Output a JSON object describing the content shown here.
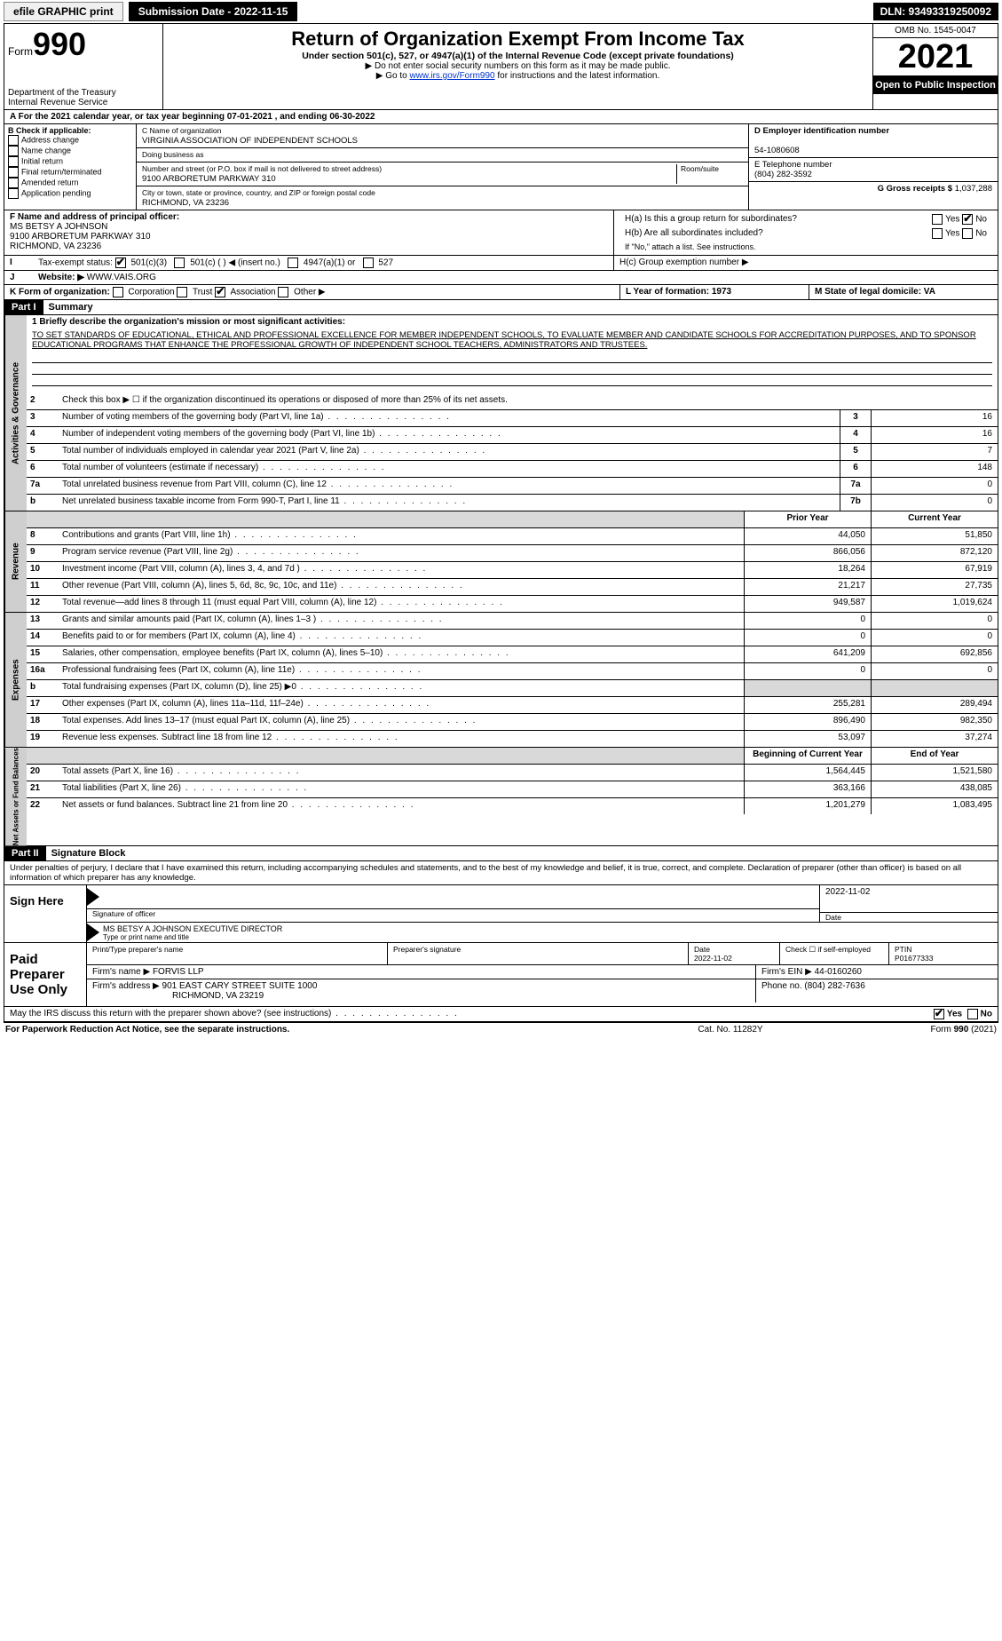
{
  "topbar": {
    "efile": "efile GRAPHIC print",
    "submission": "Submission Date - 2022-11-15",
    "dln": "DLN: 93493319250092"
  },
  "header": {
    "form_label": "Form",
    "form_no": "990",
    "title": "Return of Organization Exempt From Income Tax",
    "subtitle": "Under section 501(c), 527, or 4947(a)(1) of the Internal Revenue Code (except private foundations)",
    "note1": "▶ Do not enter social security numbers on this form as it may be made public.",
    "note2_pre": "▶ Go to ",
    "note2_link": "www.irs.gov/Form990",
    "note2_post": " for instructions and the latest information.",
    "dept": "Department of the Treasury",
    "irs": "Internal Revenue Service",
    "omb": "OMB No. 1545-0047",
    "year": "2021",
    "inspect": "Open to Public Inspection"
  },
  "rowA": "A For the 2021 calendar year, or tax year beginning 07-01-2021     , and ending 06-30-2022",
  "colB": {
    "label": "B Check if applicable:",
    "items": [
      "Address change",
      "Name change",
      "Initial return",
      "Final return/terminated",
      "Amended return",
      "Application pending"
    ]
  },
  "colC": {
    "name_label": "C Name of organization",
    "name": "VIRGINIA ASSOCIATION OF INDEPENDENT SCHOOLS",
    "dba_label": "Doing business as",
    "addr_label": "Number and street (or P.O. box if mail is not delivered to street address)",
    "room_label": "Room/suite",
    "addr": "9100 ARBORETUM PARKWAY 310",
    "city_label": "City or town, state or province, country, and ZIP or foreign postal code",
    "city": "RICHMOND, VA  23236"
  },
  "colD": {
    "ein_label": "D Employer identification number",
    "ein": "54-1080608",
    "tel_label": "E Telephone number",
    "tel": "(804) 282-3592",
    "gross_label": "G Gross receipts $",
    "gross": "1,037,288"
  },
  "rowF": {
    "label": "F Name and address of principal officer:",
    "name": "MS BETSY A JOHNSON",
    "addr": "9100 ARBORETUM PARKWAY 310",
    "city": "RICHMOND, VA  23236"
  },
  "rowH": {
    "ha": "H(a)  Is this a group return for subordinates?",
    "hb": "H(b)  Are all subordinates included?",
    "hb_note": "If \"No,\" attach a list. See instructions.",
    "hc": "H(c)  Group exemption number ▶",
    "yes": "Yes",
    "no": "No"
  },
  "rowI": {
    "label": "Tax-exempt status:",
    "opts": [
      "501(c)(3)",
      "501(c) (   ) ◀ (insert no.)",
      "4947(a)(1) or",
      "527"
    ]
  },
  "rowJ": {
    "label": "Website: ▶",
    "val": "WWW.VAIS.ORG"
  },
  "rowK": {
    "label": "K Form of organization:",
    "opts": [
      "Corporation",
      "Trust",
      "Association",
      "Other ▶"
    ],
    "L": "L Year of formation: 1973",
    "M": "M State of legal domicile: VA"
  },
  "part1": {
    "hdr": "Part I",
    "title": "Summary",
    "tab1": "Activities & Governance",
    "tab2": "Revenue",
    "tab3": "Expenses",
    "tab4": "Net Assets or Fund Balances",
    "l1": "1  Briefly describe the organization's mission or most significant activities:",
    "mission": "TO SET STANDARDS OF EDUCATIONAL, ETHICAL AND PROFESSIONAL EXCELLENCE FOR MEMBER INDEPENDENT SCHOOLS, TO EVALUATE MEMBER AND CANDIDATE SCHOOLS FOR ACCREDITATION PURPOSES, AND TO SPONSOR EDUCATIONAL PROGRAMS THAT ENHANCE THE PROFESSIONAL GROWTH OF INDEPENDENT SCHOOL TEACHERS, ADMINISTRATORS AND TRUSTEES.",
    "l2": "Check this box ▶ ☐  if the organization discontinued its operations or disposed of more than 25% of its net assets.",
    "lines_single": [
      {
        "n": "3",
        "t": "Number of voting members of the governing body (Part VI, line 1a)",
        "b": "3",
        "v": "16"
      },
      {
        "n": "4",
        "t": "Number of independent voting members of the governing body (Part VI, line 1b)",
        "b": "4",
        "v": "16"
      },
      {
        "n": "5",
        "t": "Total number of individuals employed in calendar year 2021 (Part V, line 2a)",
        "b": "5",
        "v": "7"
      },
      {
        "n": "6",
        "t": "Total number of volunteers (estimate if necessary)",
        "b": "6",
        "v": "148"
      },
      {
        "n": "7a",
        "t": "Total unrelated business revenue from Part VIII, column (C), line 12",
        "b": "7a",
        "v": "0"
      },
      {
        "n": "b",
        "t": "Net unrelated business taxable income from Form 990-T, Part I, line 11",
        "b": "7b",
        "v": "0"
      }
    ],
    "prior": "Prior Year",
    "current": "Current Year",
    "rev": [
      {
        "n": "8",
        "t": "Contributions and grants (Part VIII, line 1h)",
        "p": "44,050",
        "c": "51,850"
      },
      {
        "n": "9",
        "t": "Program service revenue (Part VIII, line 2g)",
        "p": "866,056",
        "c": "872,120"
      },
      {
        "n": "10",
        "t": "Investment income (Part VIII, column (A), lines 3, 4, and 7d )",
        "p": "18,264",
        "c": "67,919"
      },
      {
        "n": "11",
        "t": "Other revenue (Part VIII, column (A), lines 5, 6d, 8c, 9c, 10c, and 11e)",
        "p": "21,217",
        "c": "27,735"
      },
      {
        "n": "12",
        "t": "Total revenue—add lines 8 through 11 (must equal Part VIII, column (A), line 12)",
        "p": "949,587",
        "c": "1,019,624"
      }
    ],
    "exp": [
      {
        "n": "13",
        "t": "Grants and similar amounts paid (Part IX, column (A), lines 1–3 )",
        "p": "0",
        "c": "0"
      },
      {
        "n": "14",
        "t": "Benefits paid to or for members (Part IX, column (A), line 4)",
        "p": "0",
        "c": "0"
      },
      {
        "n": "15",
        "t": "Salaries, other compensation, employee benefits (Part IX, column (A), lines 5–10)",
        "p": "641,209",
        "c": "692,856"
      },
      {
        "n": "16a",
        "t": "Professional fundraising fees (Part IX, column (A), line 11e)",
        "p": "0",
        "c": "0"
      },
      {
        "n": "b",
        "t": "Total fundraising expenses (Part IX, column (D), line 25) ▶0",
        "p": "",
        "c": "",
        "shade": true
      },
      {
        "n": "17",
        "t": "Other expenses (Part IX, column (A), lines 11a–11d, 11f–24e)",
        "p": "255,281",
        "c": "289,494"
      },
      {
        "n": "18",
        "t": "Total expenses. Add lines 13–17 (must equal Part IX, column (A), line 25)",
        "p": "896,490",
        "c": "982,350"
      },
      {
        "n": "19",
        "t": "Revenue less expenses. Subtract line 18 from line 12",
        "p": "53,097",
        "c": "37,274"
      }
    ],
    "beg": "Beginning of Current Year",
    "end": "End of Year",
    "net": [
      {
        "n": "20",
        "t": "Total assets (Part X, line 16)",
        "p": "1,564,445",
        "c": "1,521,580"
      },
      {
        "n": "21",
        "t": "Total liabilities (Part X, line 26)",
        "p": "363,166",
        "c": "438,085"
      },
      {
        "n": "22",
        "t": "Net assets or fund balances. Subtract line 21 from line 20",
        "p": "1,201,279",
        "c": "1,083,495"
      }
    ]
  },
  "part2": {
    "hdr": "Part II",
    "title": "Signature Block",
    "decl": "Under penalties of perjury, I declare that I have examined this return, including accompanying schedules and statements, and to the best of my knowledge and belief, it is true, correct, and complete. Declaration of preparer (other than officer) is based on all information of which preparer has any knowledge.",
    "sign_here": "Sign Here",
    "sig_officer": "Signature of officer",
    "sig_date": "Date",
    "sig_date_val": "2022-11-02",
    "officer": "MS BETSY A JOHNSON  EXECUTIVE DIRECTOR",
    "officer_label": "Type or print name and title",
    "paid": "Paid Preparer Use Only",
    "prep_name_label": "Print/Type preparer's name",
    "prep_sig_label": "Preparer's signature",
    "prep_date_label": "Date",
    "prep_date": "2022-11-02",
    "self_emp": "Check ☐ if self-employed",
    "ptin_label": "PTIN",
    "ptin": "P01677333",
    "firm_name_label": "Firm's name    ▶",
    "firm_name": "FORVIS LLP",
    "firm_ein_label": "Firm's EIN ▶",
    "firm_ein": "44-0160260",
    "firm_addr_label": "Firm's address ▶",
    "firm_addr": "901 EAST CARY STREET SUITE 1000",
    "firm_city": "RICHMOND, VA  23219",
    "phone_label": "Phone no.",
    "phone": "(804) 282-7636",
    "discuss": "May the IRS discuss this return with the preparer shown above? (see instructions)",
    "discuss_yes": "Yes",
    "discuss_no": "No"
  },
  "footer": {
    "left": "For Paperwork Reduction Act Notice, see the separate instructions.",
    "mid": "Cat. No. 11282Y",
    "right": "Form 990 (2021)"
  },
  "colors": {
    "black": "#000000",
    "white": "#ffffff",
    "gray": "#cfcfcf",
    "shade": "#d9d9d9",
    "link": "#0033cc"
  }
}
